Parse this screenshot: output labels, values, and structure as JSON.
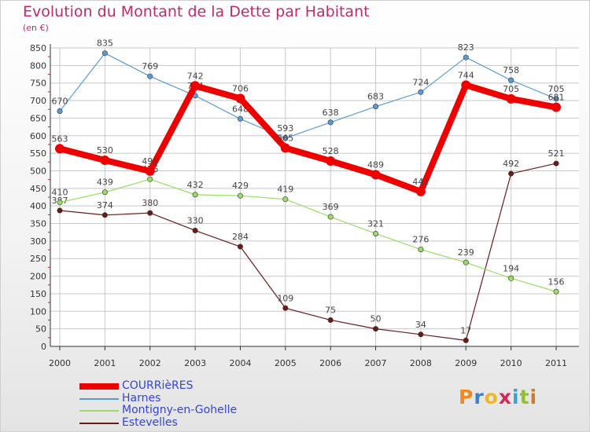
{
  "chart_data": {
    "type": "line",
    "title": "Evolution du Montant de la Dette par Habitant",
    "unit": "(en €)",
    "x": [
      "2000",
      "2001",
      "2002",
      "2003",
      "2004",
      "2005",
      "2006",
      "2007",
      "2008",
      "2009",
      "2010",
      "2011"
    ],
    "yticks": [
      0,
      50,
      100,
      150,
      200,
      250,
      300,
      350,
      400,
      450,
      500,
      550,
      600,
      650,
      700,
      750,
      800,
      850
    ],
    "ylim": [
      0,
      850
    ],
    "grid": true,
    "legend": "bottom-left",
    "series": [
      {
        "name": "Estevelles",
        "color": "#6b1a1a",
        "width": 1.2,
        "marker": 3.2,
        "values": [
          387,
          374,
          380,
          330,
          284,
          109,
          75,
          50,
          34,
          17,
          492,
          521
        ]
      },
      {
        "name": "Montigny-en-Gohelle",
        "color": "#99dd66",
        "width": 1.2,
        "marker": 3.2,
        "values": [
          410,
          439,
          476,
          432,
          429,
          419,
          369,
          321,
          276,
          239,
          194,
          156
        ]
      },
      {
        "name": "Harnes",
        "color": "#5b9bd5",
        "width": 1.2,
        "marker": 3.2,
        "values": [
          670,
          835,
          769,
          714,
          648,
          593,
          638,
          683,
          724,
          823,
          758,
          705
        ]
      },
      {
        "name": "COURRièRES",
        "color": "#ee0000",
        "width": 8,
        "marker": 6,
        "values": [
          563,
          530,
          499,
          742,
          706,
          565,
          528,
          489,
          441,
          744,
          705,
          681
        ]
      }
    ],
    "legend_order": [
      "COURRièRES",
      "Harnes",
      "Montigny-en-Gohelle",
      "Estevelles"
    ]
  },
  "logo": {
    "text": "Proxiti",
    "colors": [
      "#f08a1c",
      "#3a7fd0",
      "#f0b81c",
      "#d02a5a",
      "#3aa0d0",
      "#90c02a",
      "#d07a2a"
    ]
  }
}
